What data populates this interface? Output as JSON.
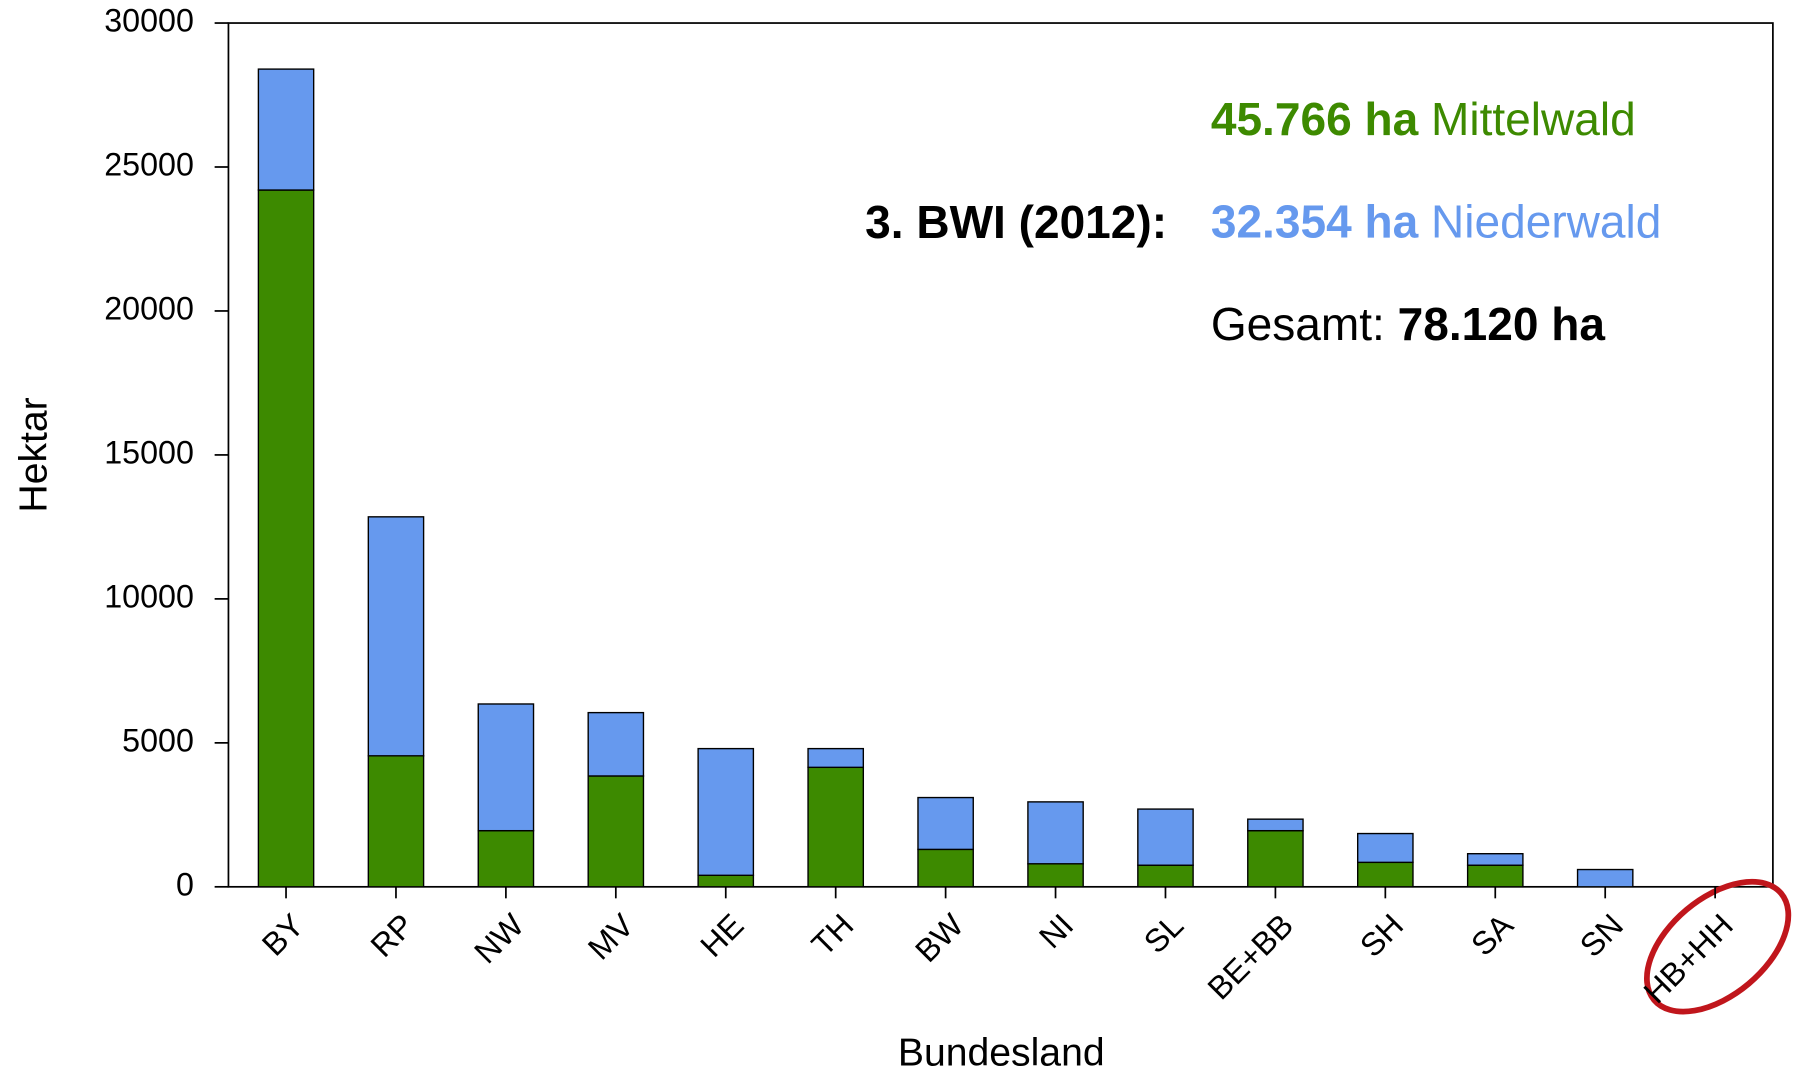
{
  "chart_data": {
    "type": "stacked_bar",
    "y_label": "Hektar",
    "x_label": "Bundesland",
    "categories": [
      "BY",
      "RP",
      "NW",
      "MV",
      "HE",
      "TH",
      "BW",
      "NI",
      "SL",
      "BE+BB",
      "SH",
      "SA",
      "SN",
      "HB+HH"
    ],
    "series": [
      {
        "name": "Mittelwald",
        "color": "#3d8a00",
        "values": [
          24200,
          4550,
          1950,
          3850,
          400,
          4150,
          1300,
          800,
          750,
          1950,
          850,
          750,
          0,
          0
        ]
      },
      {
        "name": "Niederwald",
        "color": "#6699ee",
        "values": [
          4200,
          8300,
          4400,
          2200,
          4400,
          650,
          1800,
          2150,
          1950,
          400,
          1000,
          400,
          600,
          0
        ]
      }
    ],
    "ylim": [
      0,
      30000
    ],
    "yticks": [
      0,
      5000,
      10000,
      15000,
      20000,
      25000,
      30000
    ],
    "grid": false,
    "annotations": {
      "inventory": "3. BWI (2012):",
      "mittelwald_total": "45.766 ha",
      "niederwald_total": "32.354 ha",
      "gesamt_label": "Gesamt:",
      "gesamt_total": "78.120 ha"
    }
  }
}
